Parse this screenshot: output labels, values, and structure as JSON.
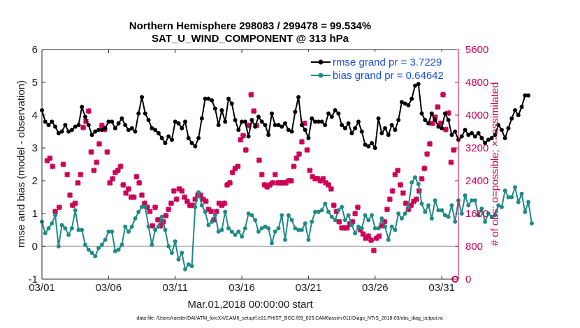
{
  "chart_data": {
    "type": "line",
    "title_line1": "Northern Hemisphere 298083 / 299478 = 99.534%",
    "title_line2": "SAT_U_WIND_COMPONENT @ 313 hPa",
    "xlabel": "Mar.01,2018 00:00:00 start",
    "ylabel": "rmse and bias (model - observation)",
    "ylabel_right": "# of obs: o=possible; ×=assimilated",
    "footnote": "data file: /Users/raeder/DAI/ATM_forcXX/CAM6_setup/f.e21.FHIST_BGC.f09_025.CAM6assim.011/Diags_NTrS_2018-03/obs_diag_output.nc",
    "ylim": [
      -1,
      6
    ],
    "yticks": [
      "-1",
      "0",
      "1",
      "2",
      "3",
      "4",
      "5",
      "6"
    ],
    "ylim_right": [
      0,
      5600
    ],
    "yticks_right": [
      "0",
      "800",
      "1600",
      "2400",
      "3200",
      "4000",
      "4800",
      "5600"
    ],
    "xlim_days": [
      1,
      32.25
    ],
    "xticks": [
      {
        "day": 1,
        "label": "03/01"
      },
      {
        "day": 6,
        "label": "03/06"
      },
      {
        "day": 11,
        "label": "03/11"
      },
      {
        "day": 16,
        "label": "03/16"
      },
      {
        "day": 21,
        "label": "03/21"
      },
      {
        "day": 26,
        "label": "03/26"
      },
      {
        "day": 31,
        "label": "03/31"
      }
    ],
    "x_start_day": 1,
    "x_step_days": 0.25,
    "legend": [
      {
        "label": "rmse grand pr = 3.7229",
        "color": "#000000"
      },
      {
        "label": "bias grand pr = 0.64642",
        "color": "#1f8a86"
      }
    ],
    "series": [
      {
        "name": "rmse",
        "color": "#000000",
        "values": [
          4.15,
          3.8,
          3.7,
          3.8,
          3.65,
          3.45,
          3.5,
          3.7,
          3.5,
          3.55,
          3.65,
          3.7,
          4.25,
          3.95,
          3.7,
          3.4,
          3.5,
          3.55,
          3.55,
          3.6,
          3.8,
          3.8,
          3.6,
          3.75,
          3.9,
          3.7,
          3.55,
          3.6,
          3.5,
          4.05,
          4.55,
          4.05,
          3.85,
          3.6,
          3.55,
          3.45,
          3.3,
          3.15,
          3.35,
          3.25,
          3.8,
          3.75,
          3.6,
          3.8,
          3.3,
          3.15,
          3.05,
          3.3,
          3.9,
          4.5,
          4.5,
          4.45,
          4.2,
          3.7,
          4.15,
          3.8,
          4.5,
          4.35,
          3.85,
          3.55,
          3.8,
          3.8,
          3.35,
          3.85,
          3.65,
          3.95,
          3.8,
          3.7,
          3.4,
          4.05,
          3.7,
          3.7,
          3.65,
          3.75,
          3.55,
          3.5,
          4.1,
          4.55,
          3.7,
          3.55,
          3.3,
          3.9,
          3.8,
          3.8,
          3.8,
          3.7,
          4.05,
          3.95,
          4.15,
          4.05,
          3.7,
          3.6,
          3.75,
          3.45,
          3.6,
          3.8,
          3.5,
          3.1,
          3.05,
          3.15,
          3.0,
          3.9,
          3.45,
          3.6,
          3.4,
          3.7,
          3.55,
          3.85,
          4.4,
          4.35,
          4.3,
          4.5,
          4.9,
          4.95,
          4.05,
          3.85,
          3.75,
          4.05,
          3.85,
          3.65,
          3.6,
          4.05,
          3.85,
          3.4,
          3.5,
          3.25,
          3.35,
          3.55,
          3.4,
          3.45,
          3.35,
          3.45,
          3.3,
          3.15,
          3.25,
          3.3,
          3.4,
          3.7,
          3.55,
          3.3,
          3.6,
          3.9,
          4.15,
          4.0,
          4.25,
          4.6,
          4.6
        ]
      },
      {
        "name": "bias",
        "color": "#1f8a86",
        "values": [
          0.75,
          0.4,
          0.55,
          0.7,
          0.95,
          0.0,
          0.65,
          0.55,
          0.35,
          0.55,
          1.1,
          0.5,
          0.5,
          0.05,
          -0.1,
          -0.2,
          -0.3,
          -0.05,
          0.05,
          0.2,
          0.45,
          0.45,
          -0.15,
          -0.1,
          0.05,
          0.6,
          0.45,
          0.6,
          0.85,
          1.05,
          1.2,
          1.2,
          0.6,
          0.05,
          0.5,
          0.6,
          0.9,
          0.5,
          0.0,
          -0.2,
          0.15,
          -0.4,
          -0.2,
          -0.7,
          -0.55,
          -0.6,
          1.2,
          1.65,
          1.25,
          1.05,
          0.65,
          0.75,
          0.95,
          0.45,
          0.5,
          1.05,
          0.55,
          0.45,
          0.35,
          0.45,
          0.3,
          0.55,
          1.0,
          0.95,
          0.8,
          0.45,
          0.55,
          0.6,
          0.55,
          0.1,
          0.45,
          0.55,
          0.95,
          0.2,
          0.95,
          0.8,
          0.55,
          0.5,
          0.5,
          0.7,
          0.2,
          0.75,
          1.05,
          1.05,
          1.1,
          1.3,
          1.05,
          0.9,
          0.8,
          1.1,
          1.2,
          0.8,
          0.95,
          0.65,
          0.4,
          0.6,
          0.55,
          0.95,
          0.8,
          0.95,
          0.55,
          0.55,
          0.85,
          0.6,
          0.2,
          0.6,
          0.5,
          1.0,
          0.85,
          1.0,
          1.2,
          1.95,
          2.1,
          1.9,
          1.3,
          1.05,
          1.25,
          0.85,
          1.4,
          1.1,
          1.1,
          0.95,
          0.9,
          1.25,
          0.75,
          1.4,
          1.0,
          1.55,
          1.25,
          1.4,
          1.4,
          0.95,
          1.15,
          0.75,
          1.0,
          0.9,
          0.95,
          1.25,
          1.2,
          1.7,
          1.5,
          1.5,
          1.8,
          1.35,
          1.6,
          1.05,
          1.35,
          0.7
        ]
      },
      {
        "name": "assimilated obs",
        "color": "#cc0055",
        "axis": "right",
        "points": [
          [
            1.4,
            2890
          ],
          [
            1.6,
            2950
          ],
          [
            1.8,
            2750
          ],
          [
            2.0,
            1650
          ],
          [
            2.3,
            1750
          ],
          [
            2.6,
            2800
          ],
          [
            2.9,
            2550
          ],
          [
            3.1,
            2050
          ],
          [
            3.3,
            1800
          ],
          [
            3.5,
            1850
          ],
          [
            3.7,
            2350
          ],
          [
            3.9,
            2550
          ],
          [
            4.1,
            3700
          ],
          [
            4.3,
            3850
          ],
          [
            4.5,
            4100
          ],
          [
            4.7,
            3100
          ],
          [
            4.9,
            2650
          ],
          [
            5.1,
            2850
          ],
          [
            5.3,
            3300
          ],
          [
            5.5,
            3750
          ],
          [
            5.7,
            3650
          ],
          [
            5.9,
            3100
          ],
          [
            6.1,
            2350
          ],
          [
            6.3,
            2450
          ],
          [
            6.5,
            2600
          ],
          [
            6.7,
            2650
          ],
          [
            6.9,
            2750
          ],
          [
            7.1,
            2300
          ],
          [
            7.3,
            2100
          ],
          [
            7.5,
            2200
          ],
          [
            7.7,
            2000
          ],
          [
            7.9,
            2000
          ],
          [
            8.1,
            2500
          ],
          [
            8.3,
            2350
          ],
          [
            8.5,
            2050
          ],
          [
            8.7,
            1850
          ],
          [
            8.9,
            1750
          ],
          [
            9.1,
            1650
          ],
          [
            9.3,
            1300
          ],
          [
            9.5,
            1750
          ],
          [
            9.7,
            1450
          ],
          [
            9.9,
            1300
          ],
          [
            10.1,
            1400
          ],
          [
            10.3,
            1550
          ],
          [
            10.5,
            1700
          ],
          [
            10.7,
            1850
          ],
          [
            10.9,
            2150
          ],
          [
            11.1,
            1950
          ],
          [
            11.3,
            2200
          ],
          [
            11.5,
            2150
          ],
          [
            11.7,
            2000
          ],
          [
            11.9,
            1900
          ],
          [
            12.1,
            1800
          ],
          [
            12.3,
            1800
          ],
          [
            12.5,
            1950
          ],
          [
            12.7,
            2050
          ],
          [
            12.9,
            2050
          ],
          [
            13.1,
            1950
          ],
          [
            13.3,
            1900
          ],
          [
            13.5,
            1700
          ],
          [
            13.7,
            1650
          ],
          [
            13.9,
            1450
          ],
          [
            14.1,
            1650
          ],
          [
            14.3,
            1850
          ],
          [
            14.5,
            1800
          ],
          [
            14.7,
            1850
          ],
          [
            14.9,
            2300
          ],
          [
            15.1,
            2350
          ],
          [
            15.3,
            2600
          ],
          [
            15.5,
            2700
          ],
          [
            15.7,
            2750
          ],
          [
            15.9,
            3400
          ],
          [
            16.1,
            3500
          ],
          [
            16.3,
            3150
          ],
          [
            16.5,
            3750
          ],
          [
            16.7,
            4500
          ],
          [
            16.9,
            4100
          ],
          [
            17.1,
            3750
          ],
          [
            17.3,
            2900
          ],
          [
            17.5,
            2550
          ],
          [
            17.7,
            2300
          ],
          [
            17.9,
            2250
          ],
          [
            18.1,
            2300
          ],
          [
            18.3,
            2350
          ],
          [
            18.5,
            2550
          ],
          [
            18.7,
            2350
          ],
          [
            18.9,
            2350
          ],
          [
            19.1,
            2350
          ],
          [
            19.3,
            2350
          ],
          [
            19.5,
            2400
          ],
          [
            19.7,
            2400
          ],
          [
            19.9,
            2750
          ],
          [
            20.1,
            2950
          ],
          [
            20.3,
            3050
          ],
          [
            20.5,
            3350
          ],
          [
            20.7,
            3800
          ],
          [
            20.9,
            3150
          ],
          [
            21.1,
            2650
          ],
          [
            21.3,
            2500
          ],
          [
            21.5,
            2450
          ],
          [
            21.7,
            2450
          ],
          [
            21.9,
            2400
          ],
          [
            22.1,
            2450
          ],
          [
            22.3,
            2350
          ],
          [
            22.5,
            2300
          ],
          [
            22.7,
            2200
          ],
          [
            22.9,
            1800
          ],
          [
            23.1,
            1650
          ],
          [
            23.3,
            1400
          ],
          [
            23.5,
            1250
          ],
          [
            23.7,
            1250
          ],
          [
            23.9,
            1250
          ],
          [
            24.1,
            1350
          ],
          [
            24.3,
            1400
          ],
          [
            24.5,
            1600
          ],
          [
            24.7,
            1750
          ],
          [
            24.9,
            1200
          ],
          [
            25.1,
            1100
          ],
          [
            25.3,
            1000
          ],
          [
            25.5,
            1050
          ],
          [
            25.7,
            950
          ],
          [
            25.9,
            700
          ],
          [
            26.1,
            1000
          ],
          [
            26.3,
            1050
          ],
          [
            26.5,
            1300
          ],
          [
            26.7,
            1400
          ],
          [
            26.9,
            1700
          ],
          [
            27.1,
            1950
          ],
          [
            27.3,
            2150
          ],
          [
            27.5,
            2550
          ],
          [
            27.7,
            2650
          ],
          [
            27.9,
            2300
          ],
          [
            28.1,
            2100
          ],
          [
            28.3,
            1850
          ],
          [
            28.5,
            1700
          ],
          [
            28.7,
            1800
          ],
          [
            28.9,
            1900
          ],
          [
            29.1,
            1950
          ],
          [
            29.3,
            2150
          ],
          [
            29.5,
            2450
          ],
          [
            29.7,
            2700
          ],
          [
            29.9,
            3050
          ],
          [
            30.1,
            3300
          ],
          [
            30.3,
            3800
          ],
          [
            30.5,
            3950
          ],
          [
            30.7,
            4200
          ],
          [
            30.9,
            3800
          ],
          [
            31.1,
            4500
          ],
          [
            31.3,
            3650
          ],
          [
            31.5,
            4050
          ],
          [
            31.7,
            2850
          ],
          [
            31.9,
            3150
          ]
        ]
      },
      {
        "name": "possible obs",
        "color": "#cc0055",
        "axis": "right",
        "points": [
          [
            32.0,
            0
          ]
        ]
      }
    ]
  }
}
